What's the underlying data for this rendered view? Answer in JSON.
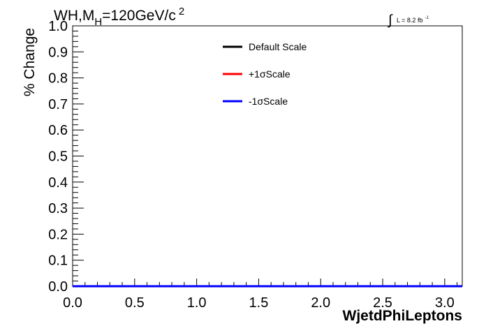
{
  "header": {
    "title_main": "WH,M",
    "title_sub": "H",
    "title_rest": "=120GeV/c",
    "title_sup": "2",
    "lumi_symbol": "∫",
    "lumi_text": "L = 8.2 fb",
    "lumi_sup": "-1"
  },
  "chart_data": {
    "type": "line",
    "xlabel": "WjetdPhiLeptons",
    "ylabel": "% Change",
    "xlim": [
      0.0,
      3.1416
    ],
    "ylim": [
      0.0,
      1.0
    ],
    "x_ticks": [
      "0.0",
      "0.5",
      "1.0",
      "1.5",
      "2.0",
      "2.5",
      "3.0"
    ],
    "y_ticks": [
      "0.0",
      "0.1",
      "0.2",
      "0.3",
      "0.4",
      "0.5",
      "0.6",
      "0.7",
      "0.8",
      "0.9",
      "1.0"
    ],
    "grid": false,
    "legend_position": "top-center",
    "series": [
      {
        "name": "Default Scale",
        "color": "#000000",
        "x": [
          0.0,
          3.1416
        ],
        "values": [
          0.0,
          0.0
        ]
      },
      {
        "name": "+1σScale",
        "color": "#ff0000",
        "x": [
          0.0,
          3.1416
        ],
        "values": [
          0.0,
          0.0
        ]
      },
      {
        "name": "-1σScale",
        "color": "#0000ff",
        "x": [
          0.0,
          3.1416
        ],
        "values": [
          0.0,
          0.0
        ]
      }
    ]
  }
}
